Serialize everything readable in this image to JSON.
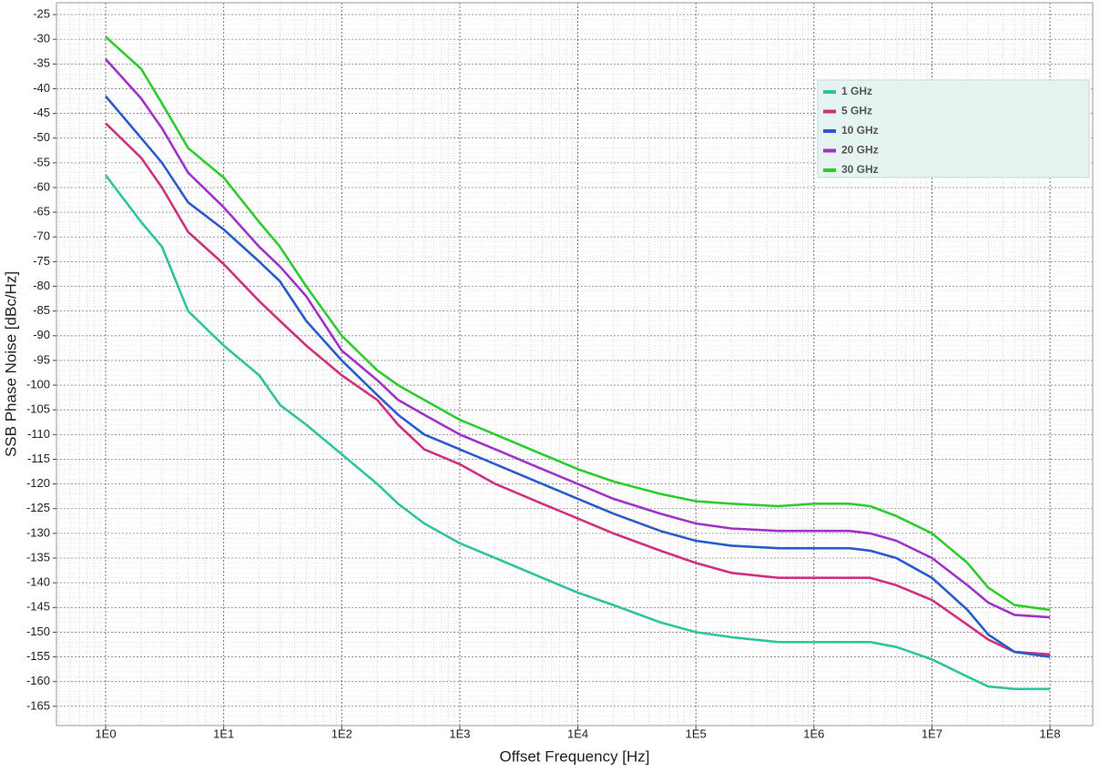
{
  "chart_data": {
    "type": "line",
    "x_label": "Offset Frequency [Hz]",
    "y_label": "SSB Phase Noise [dBc/Hz]",
    "x_log": true,
    "grid": true,
    "legend_position": "top-right",
    "xlim": [
      0.383,
      230000000
    ],
    "ylim": [
      -168.9,
      -22.6
    ],
    "xticks": [
      {
        "value": 1,
        "label": "1E0"
      },
      {
        "value": 10,
        "label": "1E1"
      },
      {
        "value": 100,
        "label": "1E2"
      },
      {
        "value": 1000,
        "label": "1E3"
      },
      {
        "value": 10000,
        "label": "1E4"
      },
      {
        "value": 100000,
        "label": "1E5"
      },
      {
        "value": 1000000,
        "label": "1E6"
      },
      {
        "value": 10000000,
        "label": "1E7"
      },
      {
        "value": 100000000,
        "label": "1E8"
      }
    ],
    "yticks": [
      -25,
      -30,
      -35,
      -40,
      -45,
      -50,
      -55,
      -60,
      -65,
      -70,
      -75,
      -80,
      -85,
      -90,
      -95,
      -100,
      -105,
      -110,
      -115,
      -120,
      -125,
      -130,
      -135,
      -140,
      -145,
      -150,
      -155,
      -160,
      -165
    ],
    "x": [
      1,
      2,
      3,
      5,
      10,
      20,
      30,
      50,
      100,
      200,
      300,
      500,
      1000,
      2000,
      5000,
      10000,
      20000,
      50000,
      100000,
      200000,
      500000,
      1000000,
      2000000,
      3000000,
      5000000,
      10000000,
      20000000,
      30000000,
      50000000,
      100000000
    ],
    "series": [
      {
        "name": "1 GHz",
        "color": "#2ec4a0",
        "values": [
          -57.5,
          -67,
          -72,
          -85,
          -92,
          -98,
          -104,
          -108,
          -114,
          -120,
          -124,
          -128,
          -132,
          -135,
          -139,
          -142,
          -144.5,
          -148,
          -150,
          -151,
          -152,
          -152,
          -152,
          -152,
          -153,
          -155.5,
          -159,
          -161,
          -161.5,
          -161.5
        ]
      },
      {
        "name": "5 GHz",
        "color": "#d1307e",
        "values": [
          -47,
          -54,
          -60,
          -69,
          -75.5,
          -83,
          -87,
          -92,
          -98,
          -103,
          -108,
          -113,
          -116,
          -120,
          -124,
          -127,
          -130,
          -133.5,
          -136,
          -138,
          -139,
          -139,
          -139,
          -139,
          -140.5,
          -143.5,
          -148.5,
          -151.5,
          -154,
          -154.5
        ]
      },
      {
        "name": "10 GHz",
        "color": "#2a5bcc",
        "values": [
          -41.5,
          -50,
          -55,
          -63,
          -68.5,
          -75,
          -79,
          -87,
          -95,
          -102,
          -106,
          -110,
          -113,
          -116,
          -120,
          -123,
          -126,
          -129.5,
          -131.5,
          -132.5,
          -133,
          -133,
          -133,
          -133.5,
          -135,
          -139,
          -145.5,
          -150.5,
          -154,
          -155
        ]
      },
      {
        "name": "20 GHz",
        "color": "#a132c9",
        "values": [
          -34,
          -42,
          -48,
          -57,
          -64,
          -72,
          -76,
          -82,
          -93,
          -99,
          -103,
          -106,
          -110,
          -113,
          -117,
          -120,
          -123,
          -126,
          -128,
          -129,
          -129.5,
          -129.5,
          -129.5,
          -130,
          -131.5,
          -135,
          -140.5,
          -144,
          -146.5,
          -147
        ]
      },
      {
        "name": "30 GHz",
        "color": "#2ecc30",
        "values": [
          -29.5,
          -36,
          -43,
          -52,
          -58,
          -67,
          -72,
          -80,
          -90,
          -97,
          -100,
          -103,
          -107,
          -110,
          -114,
          -117,
          -119.5,
          -122,
          -123.5,
          -124,
          -124.5,
          -124,
          -124,
          -124.5,
          -126.5,
          -130,
          -136,
          -141,
          -144.5,
          -145.5
        ]
      }
    ]
  }
}
